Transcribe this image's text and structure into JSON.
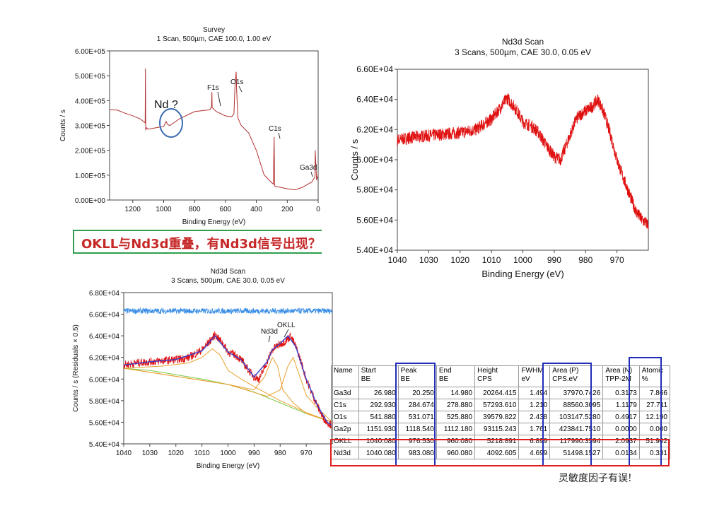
{
  "chart_data": [
    {
      "type": "line",
      "title": "Survey",
      "subtitle": "1 Scan,  500µm,  CAE 100.0,  1.00 eV",
      "xlabel": "Binding Energy (eV)",
      "ylabel": "Counts / s",
      "xlim": [
        1350,
        0
      ],
      "ylim": [
        0,
        600000
      ],
      "x_ticks": [
        1200,
        1000,
        800,
        600,
        400,
        200,
        0
      ],
      "y_ticks": [
        0,
        100000,
        200000,
        300000,
        400000,
        500000,
        600000
      ],
      "x_tick_labels": [
        "1200",
        "1000",
        "800",
        "600",
        "400",
        "200",
        "0"
      ],
      "y_tick_labels": [
        "0.00E+00",
        "1.00E+05",
        "2.00E+05",
        "3.00E+05",
        "4.00E+05",
        "5.00E+05",
        "6.00E+05"
      ],
      "color": "#b33030",
      "series": [
        {
          "name": "Survey",
          "x": [
            1350,
            1300,
            1250,
            1200,
            1150,
            1120,
            1118,
            1116,
            1110,
            1100,
            1050,
            1000,
            985,
            975,
            960,
            900,
            800,
            700,
            690,
            688,
            686,
            660,
            600,
            560,
            545,
            538,
            531,
            528,
            520,
            500,
            450,
            400,
            350,
            300,
            290,
            285,
            282,
            278,
            250,
            200,
            150,
            100,
            40,
            20,
            19,
            10,
            0
          ],
          "y": [
            365000,
            360000,
            350000,
            340000,
            325000,
            310000,
            530000,
            280000,
            290000,
            285000,
            290000,
            295000,
            315000,
            305000,
            300000,
            325000,
            355000,
            365000,
            375000,
            435000,
            370000,
            355000,
            340000,
            335000,
            345000,
            460000,
            515000,
            450000,
            330000,
            300000,
            270000,
            200000,
            100000,
            70000,
            65000,
            255000,
            60000,
            55000,
            50000,
            45000,
            40000,
            50000,
            75000,
            95000,
            200000,
            80000,
            100000
          ]
        }
      ],
      "annotations": [
        "Nd ?",
        "F1s",
        "O1s",
        "C1s",
        "Ga3d"
      ]
    },
    {
      "type": "line",
      "title": "Nd3d Scan",
      "subtitle": "3 Scans,  500µm,  CAE 30.0,  0.05 eV",
      "xlabel": "Binding Energy (eV)",
      "ylabel": "Counts / s",
      "xlim": [
        1040,
        960
      ],
      "ylim": [
        54000,
        66000
      ],
      "x_ticks": [
        1040,
        1030,
        1020,
        1010,
        1000,
        990,
        980,
        970
      ],
      "y_ticks": [
        54000,
        56000,
        58000,
        60000,
        62000,
        64000,
        66000
      ],
      "x_tick_labels": [
        "1040",
        "1030",
        "1020",
        "1010",
        "1000",
        "990",
        "980",
        "970"
      ],
      "y_tick_labels": [
        "5.40E+04",
        "5.60E+04",
        "5.80E+04",
        "6.00E+04",
        "6.20E+04",
        "6.40E+04",
        "6.60E+04"
      ],
      "color": "#e01010",
      "series": [
        {
          "name": "Nd3d",
          "x": [
            1040,
            1035,
            1030,
            1025,
            1020,
            1015,
            1010,
            1007,
            1005,
            1002,
            1000,
            997,
            995,
            993,
            990,
            988,
            985,
            983,
            981,
            978,
            976,
            974,
            972,
            970,
            968,
            966,
            964,
            962,
            960
          ],
          "y": [
            61300,
            61500,
            61600,
            61700,
            61800,
            62000,
            62700,
            63500,
            64100,
            63300,
            62500,
            62200,
            61800,
            61100,
            60200,
            60000,
            61600,
            62700,
            63100,
            63500,
            64000,
            63000,
            61600,
            60000,
            58800,
            57700,
            56600,
            56000,
            55700
          ]
        }
      ]
    },
    {
      "type": "line",
      "title": "Nd3d Scan",
      "subtitle": "3 Scans,  500µm,  CAE 30.0,  0.05 eV",
      "xlabel": "Binding Energy (eV)",
      "ylabel": "Counts / s  (Residuals × 0.5)",
      "xlim": [
        1040,
        960
      ],
      "ylim": [
        54000,
        68000
      ],
      "x_ticks": [
        1040,
        1030,
        1020,
        1010,
        1000,
        990,
        980,
        970
      ],
      "y_ticks": [
        54000,
        56000,
        58000,
        60000,
        62000,
        64000,
        66000,
        68000
      ],
      "x_tick_labels": [
        "1040",
        "1030",
        "1020",
        "1010",
        "1000",
        "990",
        "980",
        "970"
      ],
      "y_tick_labels": [
        "5.40E+04",
        "5.60E+04",
        "5.80E+04",
        "6.00E+04",
        "6.20E+04",
        "6.40E+04",
        "6.60E+04",
        "6.80E+04"
      ],
      "series": [
        {
          "name": "Residuals",
          "color": "#3a8ee6",
          "x": [
            1040,
            960
          ],
          "y": [
            66300,
            66300
          ]
        },
        {
          "name": "Data",
          "color": "#e01010",
          "x": [
            1040,
            1035,
            1030,
            1025,
            1020,
            1015,
            1010,
            1007,
            1005,
            1002,
            1000,
            997,
            995,
            993,
            990,
            988,
            985,
            983,
            981,
            978,
            976,
            974,
            972,
            970,
            968,
            966,
            964,
            962,
            960
          ],
          "y": [
            61300,
            61500,
            61600,
            61700,
            61800,
            62000,
            62700,
            63500,
            64100,
            63300,
            62500,
            62200,
            61800,
            61100,
            60200,
            60000,
            61600,
            62700,
            63100,
            63500,
            64000,
            63000,
            61600,
            60000,
            58800,
            57700,
            56600,
            56000,
            55700
          ]
        },
        {
          "name": "Envelope",
          "color": "#3c3cc8",
          "x": [
            1040,
            1030,
            1020,
            1010,
            1005,
            1000,
            995,
            990,
            985,
            983,
            980,
            977,
            974,
            970,
            966,
            962,
            960
          ],
          "y": [
            61300,
            61600,
            61800,
            62600,
            64000,
            62500,
            61800,
            60200,
            61600,
            62700,
            63300,
            64000,
            63000,
            60000,
            57700,
            56000,
            55700
          ]
        },
        {
          "name": "Background",
          "color": "#7ac943",
          "x": [
            1040,
            1030,
            1020,
            1010,
            1000,
            990,
            980,
            970,
            960
          ],
          "y": [
            61000,
            60800,
            60400,
            60000,
            59500,
            58800,
            57800,
            56800,
            56000
          ]
        },
        {
          "name": "Component 1",
          "color": "#e8a030",
          "x": [
            1040,
            1025,
            1015,
            1010,
            1006,
            1003,
            1000,
            995,
            990,
            980,
            970,
            960
          ],
          "y": [
            61000,
            61200,
            61500,
            62000,
            62800,
            62200,
            60800,
            60000,
            59300,
            58000,
            56900,
            56000
          ]
        },
        {
          "name": "Component 2",
          "color": "#e8a030",
          "x": [
            1040,
            1000,
            990,
            986,
            983,
            981,
            979,
            975,
            970,
            960
          ],
          "y": [
            61000,
            59500,
            59000,
            60200,
            62000,
            61200,
            59000,
            57800,
            56800,
            56000
          ]
        },
        {
          "name": "Component 3",
          "color": "#e8a030",
          "x": [
            1040,
            1000,
            985,
            980,
            977,
            975,
            973,
            970,
            966,
            960
          ],
          "y": [
            61000,
            59500,
            58400,
            59000,
            61200,
            62000,
            60600,
            58500,
            57400,
            56000
          ]
        }
      ],
      "annotations": [
        "Nd3d",
        "OKLL"
      ]
    }
  ],
  "callout": {
    "text": "OKLL与Nd3d重叠，有Nd3d信号出现？"
  },
  "table": {
    "headers": [
      [
        "Name",
        ""
      ],
      [
        "Start",
        "BE"
      ],
      [
        "Peak",
        "BE"
      ],
      [
        "End",
        "BE"
      ],
      [
        "Height",
        "CPS"
      ],
      [
        "FWHM",
        "eV"
      ],
      [
        "Area (P)",
        "CPS.eV"
      ],
      [
        "Area (N)",
        "TPP-2M"
      ],
      [
        "Atomic",
        "%"
      ]
    ],
    "rows": [
      [
        "Ga3d",
        "26.980",
        "20.250",
        "14.980",
        "20264.415",
        "1.494",
        "37970.7426",
        "0.3173",
        "7.866"
      ],
      [
        "C1s",
        "292.930",
        "284.674",
        "278.880",
        "57293.610",
        "1.210",
        "88560.3095",
        "1.1179",
        "27.711"
      ],
      [
        "O1s",
        "541.880",
        "531.071",
        "525.880",
        "39579.822",
        "2.438",
        "103147.5280",
        "0.4917",
        "12.190"
      ],
      [
        "Ga2p",
        "1151.930",
        "1118.540",
        "1112.180",
        "93115.243",
        "1.761",
        "423841.7510",
        "0.0000",
        "0.000"
      ],
      [
        "OKLL",
        "1040.080",
        "976.530",
        "960.080",
        "5218.891",
        "6.899",
        "117990.3594",
        "2.0937",
        "51.902"
      ],
      [
        "Nd3d",
        "1040.080",
        "983.080",
        "960.080",
        "4092.605",
        "4.699",
        "51498.1527",
        "0.0134",
        "0.331"
      ]
    ]
  },
  "footnote": "灵敏度因子有误!"
}
